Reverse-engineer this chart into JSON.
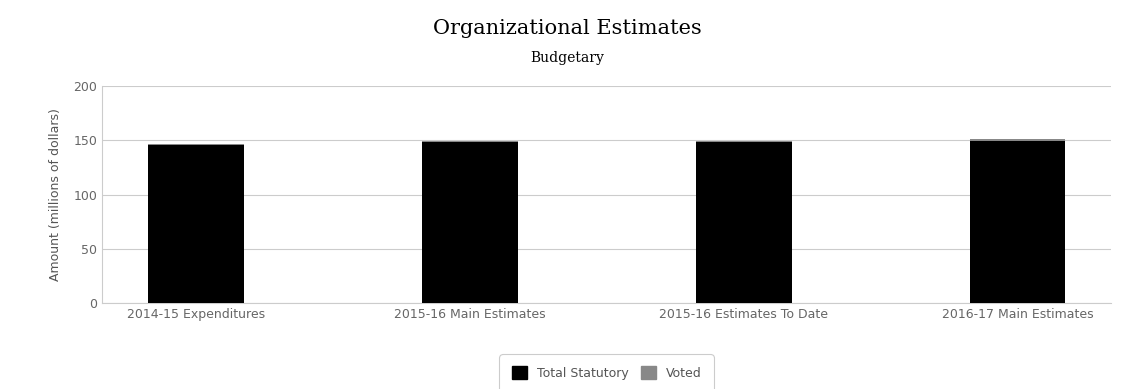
{
  "title": "Organizational Estimates",
  "subtitle": "Budgetary",
  "categories": [
    "2014-15 Expenditures",
    "2015-16 Main Estimates",
    "2015-16 Estimates To Date",
    "2016-17 Main Estimates"
  ],
  "statutory_values": [
    145,
    148,
    148,
    149.5
  ],
  "voted_values": [
    1,
    1,
    1,
    1
  ],
  "statutory_color": "#000000",
  "voted_color": "#888888",
  "ylabel": "Amount (millions of dollars)",
  "ylim": [
    0,
    200
  ],
  "yticks": [
    0,
    50,
    100,
    150,
    200
  ],
  "background_color": "#ffffff",
  "title_fontsize": 15,
  "subtitle_fontsize": 10,
  "legend_labels": [
    "Total Statutory",
    "Voted"
  ],
  "bar_width": 0.35,
  "figsize": [
    11.34,
    3.89
  ],
  "dpi": 100
}
